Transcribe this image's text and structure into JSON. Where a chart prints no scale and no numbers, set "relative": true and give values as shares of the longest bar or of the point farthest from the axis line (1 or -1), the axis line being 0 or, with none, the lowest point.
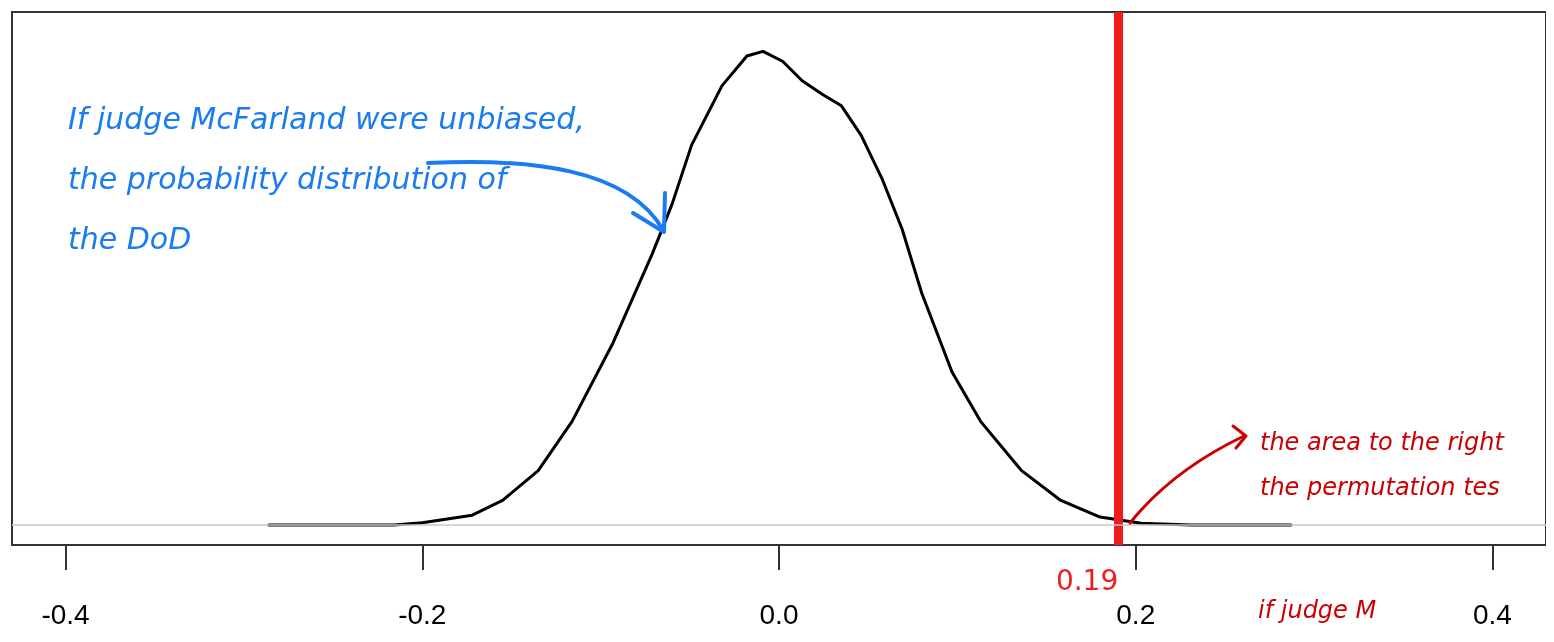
{
  "chart_data": {
    "type": "line",
    "relative": true,
    "x": [
      -0.286,
      -0.216,
      -0.2,
      -0.172,
      -0.155,
      -0.135,
      -0.116,
      -0.093,
      -0.071,
      -0.06,
      -0.049,
      -0.032,
      -0.018,
      -0.009,
      0.002,
      0.013,
      0.024,
      0.035,
      0.046,
      0.058,
      0.069,
      0.08,
      0.097,
      0.113,
      0.136,
      0.158,
      0.18,
      0.203,
      0.231,
      0.287
    ],
    "series": [
      {
        "color": "#000000",
        "values": [
          0,
          0,
          0.005,
          0.021,
          0.052,
          0.115,
          0.219,
          0.385,
          0.573,
          0.677,
          0.802,
          0.927,
          0.99,
          1,
          0.979,
          0.938,
          0.91,
          0.885,
          0.823,
          0.729,
          0.625,
          0.49,
          0.323,
          0.219,
          0.115,
          0.052,
          0.017,
          0.004,
          0,
          0
        ]
      }
    ],
    "xlim": [
      -0.43,
      0.43
    ],
    "xticks": [
      -0.4,
      -0.2,
      {
        "value": 0,
        "label": "0.0"
      },
      0.2,
      0.4
    ],
    "grid": false,
    "marker": "none",
    "line_style": "solid",
    "ref_lines": [
      {
        "axis": "x",
        "value": 0.19,
        "label": "0.19",
        "color": "#ee1c1c"
      },
      {
        "axis": "y",
        "value": 0,
        "color": "#c8c8c8"
      }
    ],
    "annotations": [
      "If judge McFarland were unbiased, the probability distribution of the DoD",
      "the area to the right",
      "the permutation tes",
      "if judge M"
    ]
  }
}
